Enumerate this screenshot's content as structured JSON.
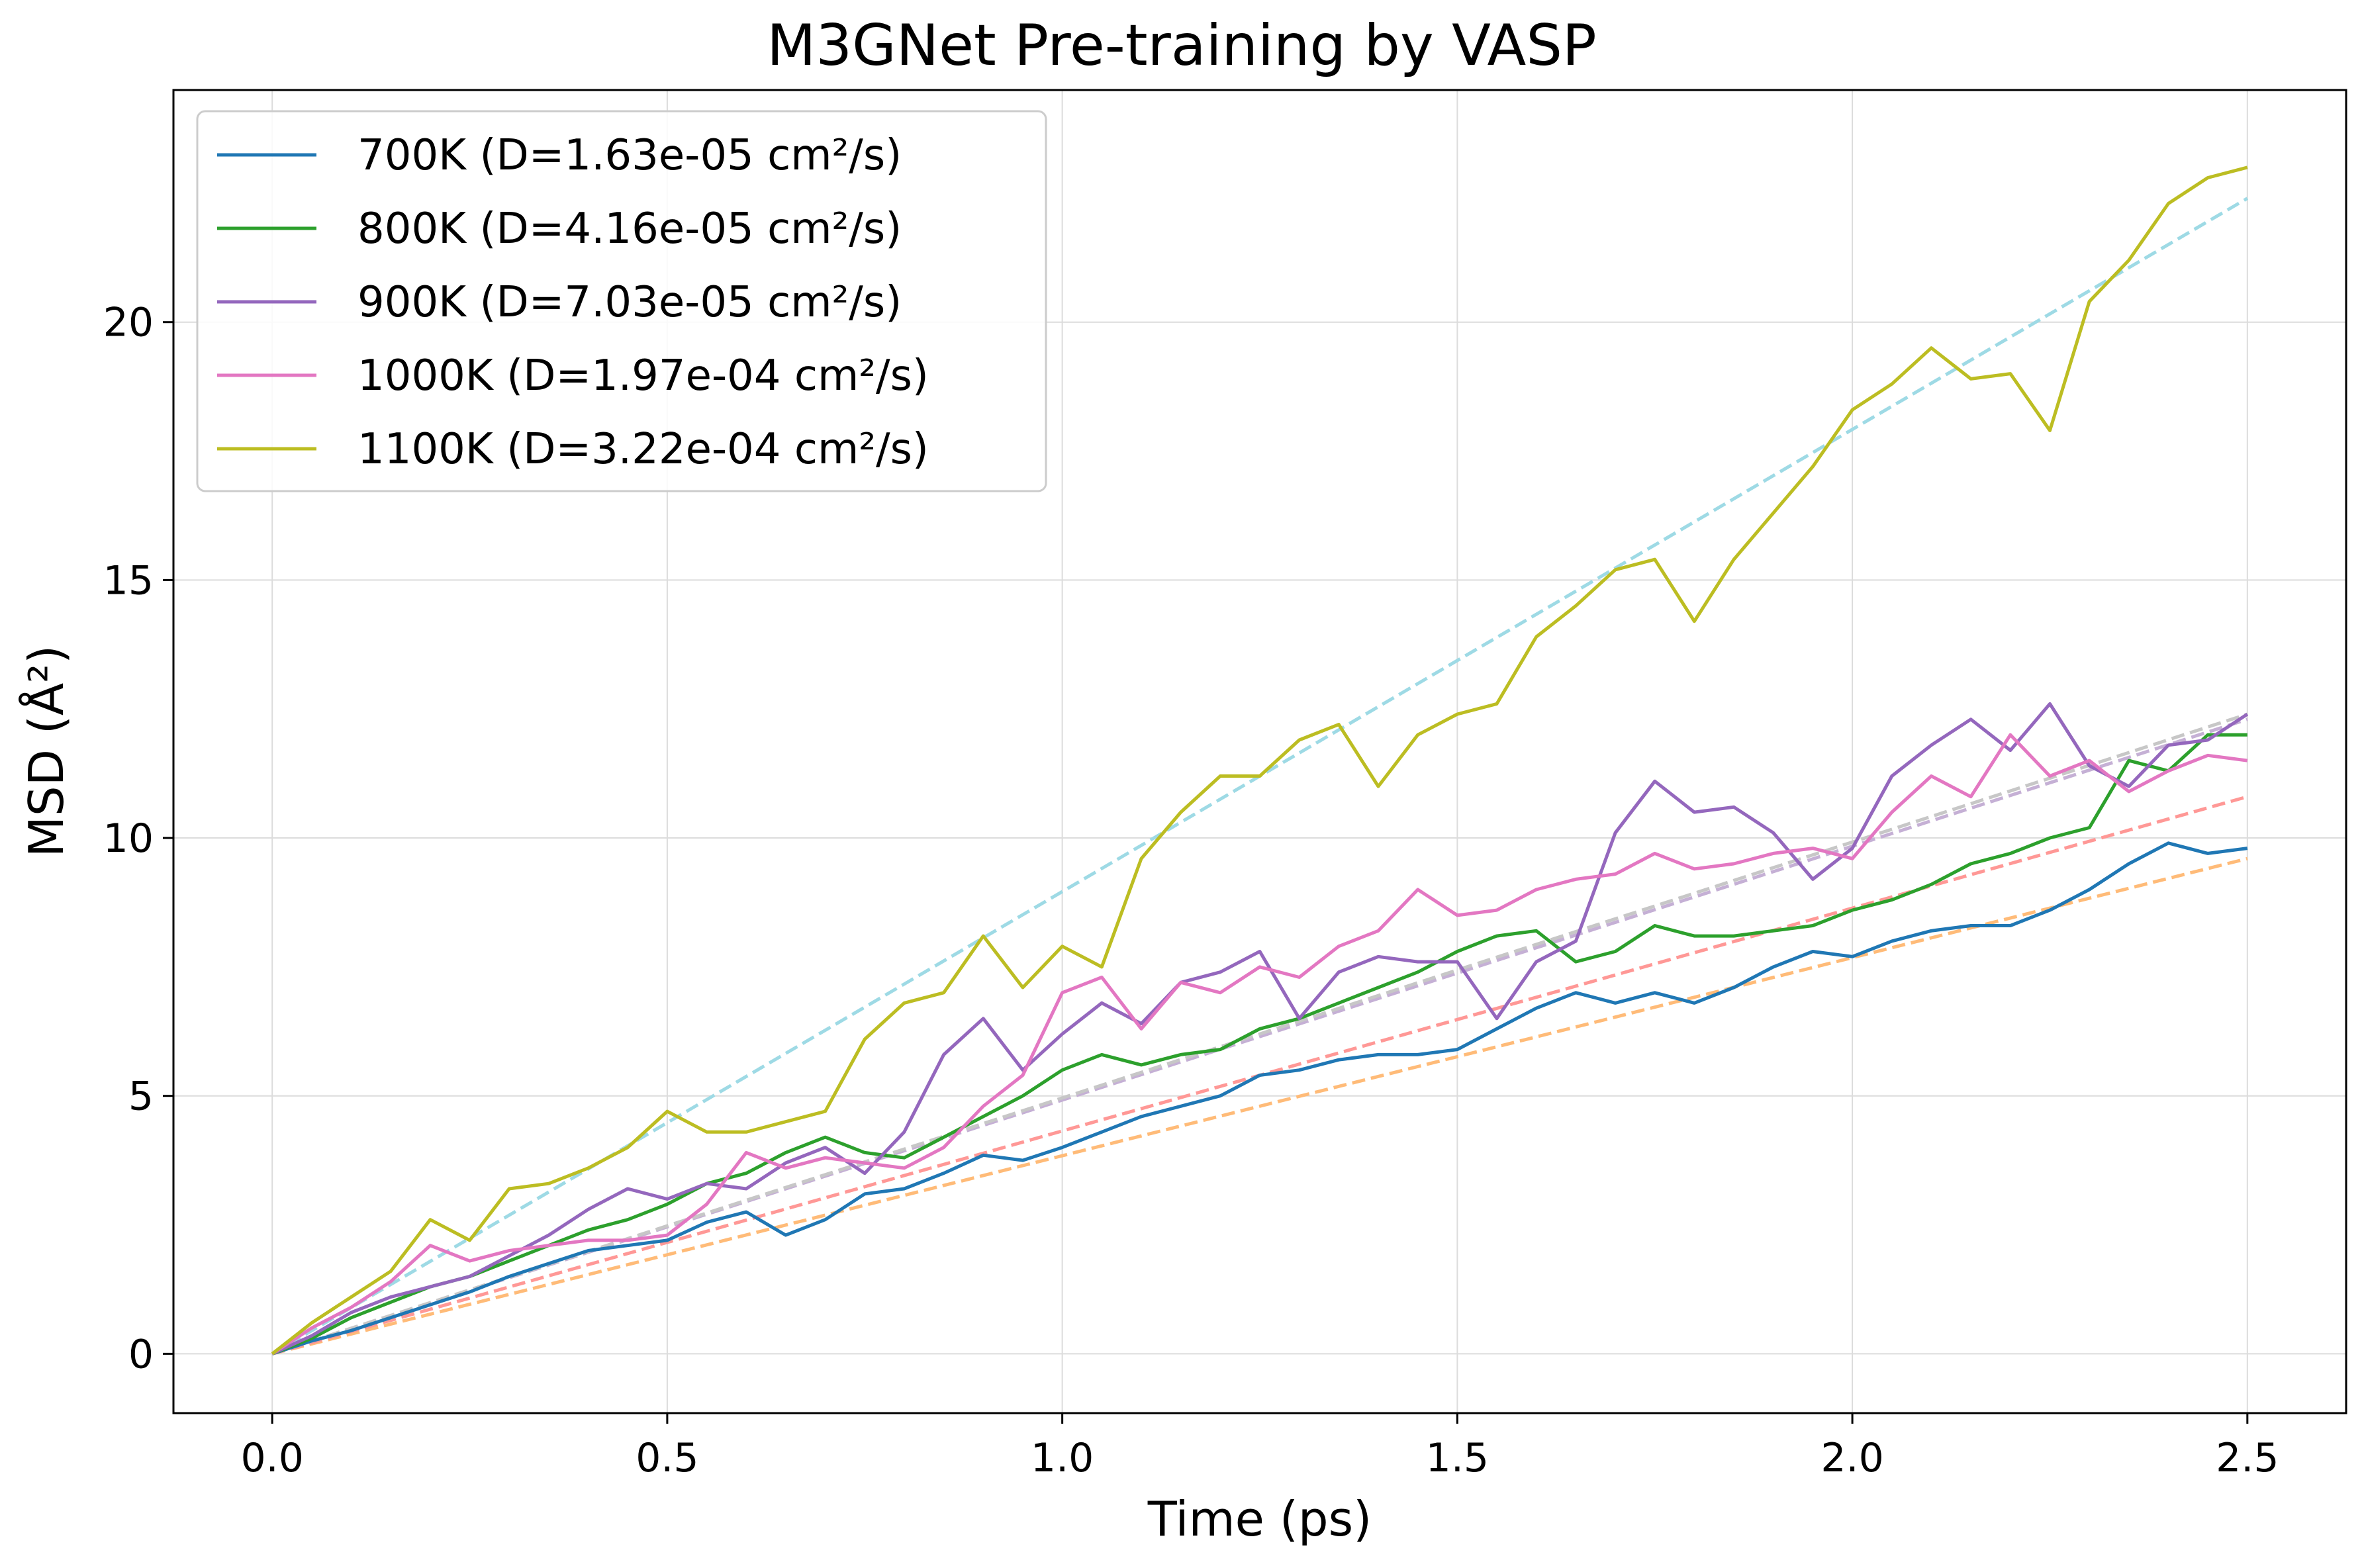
{
  "chart_data": {
    "type": "line",
    "title": "M3GNet Pre-training by VASP",
    "xlabel": "Time (ps)",
    "ylabel": "MSD (Å²)",
    "xlim": [
      -0.125,
      2.625
    ],
    "ylim": [
      -1.15,
      24.5
    ],
    "xticks": [
      0.0,
      0.5,
      1.0,
      1.5,
      2.0,
      2.5
    ],
    "xtick_labels": [
      "0.0",
      "0.5",
      "1.0",
      "1.5",
      "2.0",
      "2.5"
    ],
    "yticks": [
      0,
      5,
      10,
      15,
      20
    ],
    "ytick_labels": [
      "0",
      "5",
      "10",
      "15",
      "20"
    ],
    "grid": true,
    "legend_position": "top-left",
    "series": [
      {
        "name": "700K (D=1.63e-05 cm²/s)",
        "color": "#1f77b4",
        "points": [
          [
            0,
            0
          ],
          [
            0.05,
            0.25
          ],
          [
            0.1,
            0.45
          ],
          [
            0.15,
            0.7
          ],
          [
            0.2,
            0.95
          ],
          [
            0.25,
            1.2
          ],
          [
            0.3,
            1.5
          ],
          [
            0.35,
            1.75
          ],
          [
            0.4,
            2.0
          ],
          [
            0.45,
            2.1
          ],
          [
            0.5,
            2.2
          ],
          [
            0.55,
            2.55
          ],
          [
            0.6,
            2.75
          ],
          [
            0.65,
            2.3
          ],
          [
            0.7,
            2.6
          ],
          [
            0.75,
            3.1
          ],
          [
            0.8,
            3.2
          ],
          [
            0.85,
            3.5
          ],
          [
            0.9,
            3.85
          ],
          [
            0.95,
            3.75
          ],
          [
            1.0,
            4.0
          ],
          [
            1.05,
            4.3
          ],
          [
            1.1,
            4.6
          ],
          [
            1.15,
            4.8
          ],
          [
            1.2,
            5.0
          ],
          [
            1.25,
            5.4
          ],
          [
            1.3,
            5.5
          ],
          [
            1.35,
            5.7
          ],
          [
            1.4,
            5.8
          ],
          [
            1.45,
            5.8
          ],
          [
            1.5,
            5.9
          ],
          [
            1.55,
            6.3
          ],
          [
            1.6,
            6.7
          ],
          [
            1.65,
            7.0
          ],
          [
            1.7,
            6.8
          ],
          [
            1.75,
            7.0
          ],
          [
            1.8,
            6.8
          ],
          [
            1.85,
            7.1
          ],
          [
            1.9,
            7.5
          ],
          [
            1.95,
            7.8
          ],
          [
            2.0,
            7.7
          ],
          [
            2.05,
            8.0
          ],
          [
            2.1,
            8.2
          ],
          [
            2.15,
            8.3
          ],
          [
            2.2,
            8.3
          ],
          [
            2.25,
            8.6
          ],
          [
            2.3,
            9.0
          ],
          [
            2.35,
            9.5
          ],
          [
            2.4,
            9.9
          ],
          [
            2.45,
            9.7
          ],
          [
            2.5,
            9.8
          ]
        ]
      },
      {
        "name": "800K (D=4.16e-05 cm²/s)",
        "color": "#2ca02c",
        "points": [
          [
            0,
            0
          ],
          [
            0.05,
            0.3
          ],
          [
            0.1,
            0.7
          ],
          [
            0.15,
            1.0
          ],
          [
            0.2,
            1.3
          ],
          [
            0.25,
            1.5
          ],
          [
            0.3,
            1.8
          ],
          [
            0.35,
            2.1
          ],
          [
            0.4,
            2.4
          ],
          [
            0.45,
            2.6
          ],
          [
            0.5,
            2.9
          ],
          [
            0.55,
            3.3
          ],
          [
            0.6,
            3.5
          ],
          [
            0.65,
            3.9
          ],
          [
            0.7,
            4.2
          ],
          [
            0.75,
            3.9
          ],
          [
            0.8,
            3.8
          ],
          [
            0.85,
            4.2
          ],
          [
            0.9,
            4.6
          ],
          [
            0.95,
            5.0
          ],
          [
            1.0,
            5.5
          ],
          [
            1.05,
            5.8
          ],
          [
            1.1,
            5.6
          ],
          [
            1.15,
            5.8
          ],
          [
            1.2,
            5.9
          ],
          [
            1.25,
            6.3
          ],
          [
            1.3,
            6.5
          ],
          [
            1.35,
            6.8
          ],
          [
            1.4,
            7.1
          ],
          [
            1.45,
            7.4
          ],
          [
            1.5,
            7.8
          ],
          [
            1.55,
            8.1
          ],
          [
            1.6,
            8.2
          ],
          [
            1.65,
            7.6
          ],
          [
            1.7,
            7.8
          ],
          [
            1.75,
            8.3
          ],
          [
            1.8,
            8.1
          ],
          [
            1.85,
            8.1
          ],
          [
            1.9,
            8.2
          ],
          [
            1.95,
            8.3
          ],
          [
            2.0,
            8.6
          ],
          [
            2.05,
            8.8
          ],
          [
            2.1,
            9.1
          ],
          [
            2.15,
            9.5
          ],
          [
            2.2,
            9.7
          ],
          [
            2.25,
            10.0
          ],
          [
            2.3,
            10.2
          ],
          [
            2.35,
            11.5
          ],
          [
            2.4,
            11.3
          ],
          [
            2.45,
            12.0
          ],
          [
            2.5,
            12.0
          ]
        ]
      },
      {
        "name": "900K (D=7.03e-05 cm²/s)",
        "color": "#9467bd",
        "points": [
          [
            0,
            0
          ],
          [
            0.05,
            0.35
          ],
          [
            0.1,
            0.8
          ],
          [
            0.15,
            1.1
          ],
          [
            0.2,
            1.3
          ],
          [
            0.25,
            1.5
          ],
          [
            0.3,
            1.9
          ],
          [
            0.35,
            2.3
          ],
          [
            0.4,
            2.8
          ],
          [
            0.45,
            3.2
          ],
          [
            0.5,
            3.0
          ],
          [
            0.55,
            3.3
          ],
          [
            0.6,
            3.2
          ],
          [
            0.65,
            3.7
          ],
          [
            0.7,
            4.0
          ],
          [
            0.75,
            3.5
          ],
          [
            0.8,
            4.3
          ],
          [
            0.85,
            5.8
          ],
          [
            0.9,
            6.5
          ],
          [
            0.95,
            5.5
          ],
          [
            1.0,
            6.2
          ],
          [
            1.05,
            6.8
          ],
          [
            1.1,
            6.4
          ],
          [
            1.15,
            7.2
          ],
          [
            1.2,
            7.4
          ],
          [
            1.25,
            7.8
          ],
          [
            1.3,
            6.5
          ],
          [
            1.35,
            7.4
          ],
          [
            1.4,
            7.7
          ],
          [
            1.45,
            7.6
          ],
          [
            1.5,
            7.6
          ],
          [
            1.55,
            6.5
          ],
          [
            1.6,
            7.6
          ],
          [
            1.65,
            8.0
          ],
          [
            1.7,
            10.1
          ],
          [
            1.75,
            11.1
          ],
          [
            1.8,
            10.5
          ],
          [
            1.85,
            10.6
          ],
          [
            1.9,
            10.1
          ],
          [
            1.95,
            9.2
          ],
          [
            2.0,
            9.8
          ],
          [
            2.05,
            11.2
          ],
          [
            2.1,
            11.8
          ],
          [
            2.15,
            12.3
          ],
          [
            2.2,
            11.7
          ],
          [
            2.25,
            12.6
          ],
          [
            2.3,
            11.4
          ],
          [
            2.35,
            11.0
          ],
          [
            2.4,
            11.8
          ],
          [
            2.45,
            11.9
          ],
          [
            2.5,
            12.4
          ]
        ]
      },
      {
        "name": "1000K (D=1.97e-04 cm²/s)",
        "color": "#e377c2",
        "points": [
          [
            0,
            0
          ],
          [
            0.05,
            0.5
          ],
          [
            0.1,
            0.9
          ],
          [
            0.15,
            1.4
          ],
          [
            0.2,
            2.1
          ],
          [
            0.25,
            1.8
          ],
          [
            0.3,
            2.0
          ],
          [
            0.35,
            2.1
          ],
          [
            0.4,
            2.2
          ],
          [
            0.45,
            2.2
          ],
          [
            0.5,
            2.3
          ],
          [
            0.55,
            2.9
          ],
          [
            0.6,
            3.9
          ],
          [
            0.65,
            3.6
          ],
          [
            0.7,
            3.8
          ],
          [
            0.75,
            3.7
          ],
          [
            0.8,
            3.6
          ],
          [
            0.85,
            4.0
          ],
          [
            0.9,
            4.8
          ],
          [
            0.95,
            5.4
          ],
          [
            1.0,
            7.0
          ],
          [
            1.05,
            7.3
          ],
          [
            1.1,
            6.3
          ],
          [
            1.15,
            7.2
          ],
          [
            1.2,
            7.0
          ],
          [
            1.25,
            7.5
          ],
          [
            1.3,
            7.3
          ],
          [
            1.35,
            7.9
          ],
          [
            1.4,
            8.2
          ],
          [
            1.45,
            9.0
          ],
          [
            1.5,
            8.5
          ],
          [
            1.55,
            8.6
          ],
          [
            1.6,
            9.0
          ],
          [
            1.65,
            9.2
          ],
          [
            1.7,
            9.3
          ],
          [
            1.75,
            9.7
          ],
          [
            1.8,
            9.4
          ],
          [
            1.85,
            9.5
          ],
          [
            1.9,
            9.7
          ],
          [
            1.95,
            9.8
          ],
          [
            2.0,
            9.6
          ],
          [
            2.05,
            10.5
          ],
          [
            2.1,
            11.2
          ],
          [
            2.15,
            10.8
          ],
          [
            2.2,
            12.0
          ],
          [
            2.25,
            11.2
          ],
          [
            2.3,
            11.5
          ],
          [
            2.35,
            10.9
          ],
          [
            2.4,
            11.3
          ],
          [
            2.45,
            11.6
          ],
          [
            2.5,
            11.5
          ]
        ]
      },
      {
        "name": "1100K (D=3.22e-04 cm²/s)",
        "color": "#bcbd22",
        "points": [
          [
            0,
            0
          ],
          [
            0.05,
            0.6
          ],
          [
            0.1,
            1.1
          ],
          [
            0.15,
            1.6
          ],
          [
            0.2,
            2.6
          ],
          [
            0.25,
            2.2
          ],
          [
            0.3,
            3.2
          ],
          [
            0.35,
            3.3
          ],
          [
            0.4,
            3.6
          ],
          [
            0.45,
            4.0
          ],
          [
            0.5,
            4.7
          ],
          [
            0.55,
            4.3
          ],
          [
            0.6,
            4.3
          ],
          [
            0.65,
            4.5
          ],
          [
            0.7,
            4.7
          ],
          [
            0.75,
            6.1
          ],
          [
            0.8,
            6.8
          ],
          [
            0.85,
            7.0
          ],
          [
            0.9,
            8.1
          ],
          [
            0.95,
            7.1
          ],
          [
            1.0,
            7.9
          ],
          [
            1.05,
            7.5
          ],
          [
            1.1,
            9.6
          ],
          [
            1.15,
            10.5
          ],
          [
            1.2,
            11.2
          ],
          [
            1.25,
            11.2
          ],
          [
            1.3,
            11.9
          ],
          [
            1.35,
            12.2
          ],
          [
            1.4,
            11.0
          ],
          [
            1.45,
            12.0
          ],
          [
            1.5,
            12.4
          ],
          [
            1.55,
            12.6
          ],
          [
            1.6,
            13.9
          ],
          [
            1.65,
            14.5
          ],
          [
            1.7,
            15.2
          ],
          [
            1.75,
            15.4
          ],
          [
            1.8,
            14.2
          ],
          [
            1.85,
            15.4
          ],
          [
            1.9,
            16.3
          ],
          [
            1.95,
            17.2
          ],
          [
            2.0,
            18.3
          ],
          [
            2.05,
            18.8
          ],
          [
            2.1,
            19.5
          ],
          [
            2.15,
            18.9
          ],
          [
            2.2,
            19.0
          ],
          [
            2.25,
            17.9
          ],
          [
            2.3,
            20.4
          ],
          [
            2.35,
            21.2
          ],
          [
            2.4,
            22.3
          ],
          [
            2.45,
            22.8
          ],
          [
            2.5,
            23.0
          ]
        ]
      }
    ],
    "fit_lines": [
      {
        "color": "#ffbb78",
        "x": [
          0,
          2.5
        ],
        "y": [
          0,
          9.6
        ]
      },
      {
        "color": "#ff9896",
        "x": [
          0,
          2.5
        ],
        "y": [
          0,
          10.8
        ]
      },
      {
        "color": "#c5b0d5",
        "x": [
          0,
          2.5
        ],
        "y": [
          0,
          12.3
        ]
      },
      {
        "color": "#c7c7c7",
        "x": [
          0,
          2.5
        ],
        "y": [
          0,
          12.4
        ]
      },
      {
        "color": "#9edae5",
        "x": [
          0,
          2.5
        ],
        "y": [
          0,
          22.4
        ]
      }
    ]
  }
}
